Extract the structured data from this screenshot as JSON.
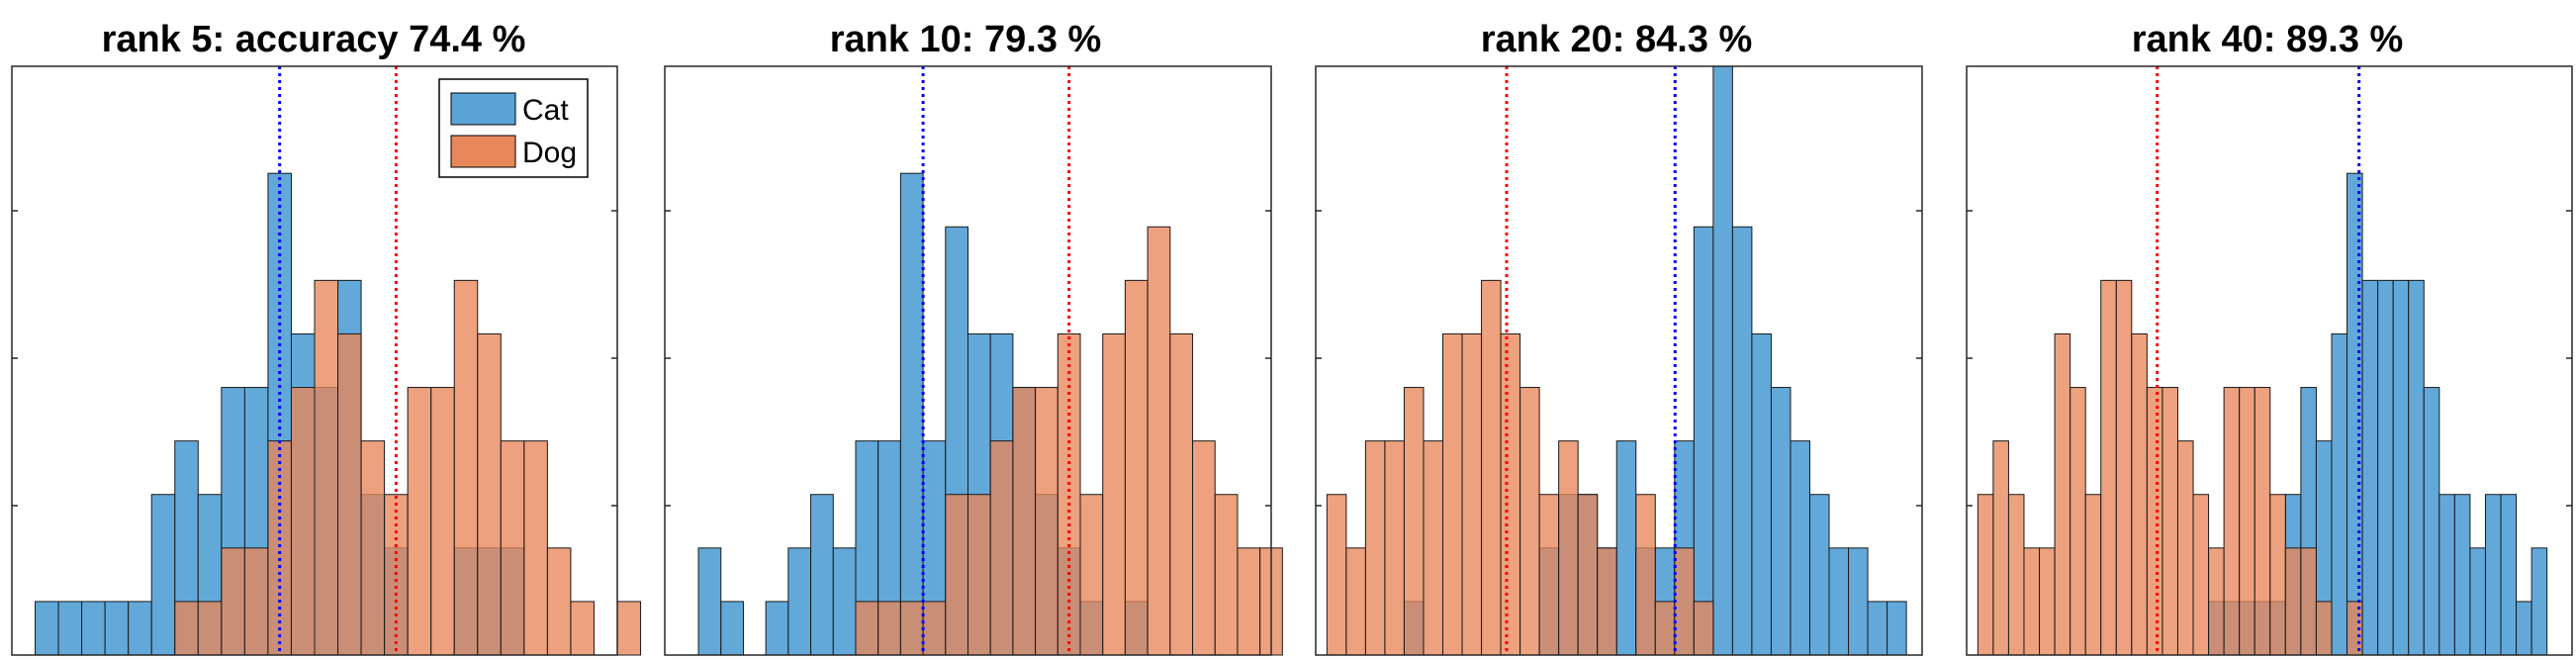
{
  "chart_data": [
    {
      "type": "histogram",
      "title": "rank 5: accuracy 74.4 %",
      "xlim": [
        0,
        26
      ],
      "ylim": [
        0,
        11
      ],
      "grid": false,
      "legend": {
        "placement": "top-right",
        "entries": [
          "Cat",
          "Dog"
        ]
      },
      "series": [
        {
          "name": "Cat",
          "color": "#5aa4d8",
          "values": [
            1,
            1,
            1,
            1,
            1,
            3,
            4,
            3,
            5,
            5,
            9,
            6,
            5,
            7,
            3,
            2,
            0,
            0,
            2,
            2,
            2,
            0,
            0,
            0,
            0,
            0
          ]
        },
        {
          "name": "Dog",
          "color": "#e8875a",
          "values": [
            0,
            0,
            0,
            0,
            0,
            0,
            1,
            1,
            2,
            2,
            4,
            5,
            7,
            6,
            4,
            3,
            5,
            5,
            7,
            6,
            4,
            4,
            2,
            1,
            0,
            1
          ]
        }
      ],
      "reference_lines": [
        {
          "x": 11.5,
          "color": "#0000ff"
        },
        {
          "x": 16.5,
          "color": "#ff0000"
        }
      ]
    },
    {
      "type": "histogram",
      "title": "rank 10: 79.3 %",
      "xlim": [
        0,
        27
      ],
      "ylim": [
        0,
        11
      ],
      "grid": false,
      "series": [
        {
          "name": "Cat",
          "color": "#5aa4d8",
          "values": [
            0,
            2,
            1,
            0,
            1,
            2,
            3,
            2,
            4,
            4,
            9,
            4,
            8,
            6,
            6,
            5,
            3,
            2,
            1,
            0,
            1,
            0,
            0,
            0,
            0,
            0,
            0
          ]
        },
        {
          "name": "Dog",
          "color": "#e8875a",
          "values": [
            0,
            0,
            0,
            0,
            0,
            0,
            0,
            0,
            1,
            1,
            1,
            1,
            3,
            3,
            4,
            5,
            5,
            6,
            3,
            6,
            7,
            8,
            6,
            4,
            3,
            2,
            2
          ]
        }
      ],
      "reference_lines": [
        {
          "x": 11.5,
          "color": "#0000ff"
        },
        {
          "x": 18,
          "color": "#ff0000"
        }
      ]
    },
    {
      "type": "histogram",
      "title": "rank 20: 84.3 %",
      "xlim": [
        0,
        27
      ],
      "ylim": [
        0,
        11
      ],
      "grid": false,
      "series": [
        {
          "name": "Cat",
          "color": "#5aa4d8",
          "values": [
            0,
            0,
            0,
            0,
            1,
            0,
            0,
            0,
            0,
            0,
            0,
            2,
            3,
            3,
            2,
            4,
            2,
            2,
            4,
            8,
            11,
            8,
            6,
            5,
            4,
            3,
            2,
            2,
            1,
            1,
            0
          ]
        },
        {
          "name": "Dog",
          "color": "#e8875a",
          "values": [
            3,
            2,
            4,
            4,
            5,
            4,
            6,
            6,
            7,
            6,
            5,
            3,
            4,
            3,
            2,
            0,
            3,
            1,
            2,
            1,
            0,
            0,
            0,
            0,
            0,
            0,
            0,
            0,
            0,
            0,
            0
          ]
        }
      ],
      "reference_lines": [
        {
          "x": 8.5,
          "color": "#ff0000"
        },
        {
          "x": 16,
          "color": "#0000ff"
        }
      ]
    },
    {
      "type": "histogram",
      "title": "rank 40: 89.3 %",
      "xlim": [
        0,
        27
      ],
      "ylim": [
        0,
        11
      ],
      "grid": false,
      "series": [
        {
          "name": "Cat",
          "color": "#5aa4d8",
          "values": [
            0,
            0,
            0,
            0,
            0,
            0,
            0,
            0,
            0,
            0,
            0,
            0,
            0,
            0,
            0,
            1,
            1,
            1,
            1,
            1,
            3,
            5,
            4,
            6,
            9,
            7,
            7,
            7,
            7,
            5,
            3,
            3,
            2,
            3,
            3,
            1,
            2
          ]
        },
        {
          "name": "Dog",
          "color": "#e8875a",
          "values": [
            3,
            4,
            3,
            2,
            2,
            6,
            5,
            3,
            7,
            7,
            6,
            5,
            5,
            4,
            3,
            2,
            5,
            5,
            5,
            3,
            2,
            2,
            1,
            0,
            1,
            0,
            0,
            0,
            0,
            0,
            0,
            0,
            0,
            0,
            0,
            0,
            0
          ]
        }
      ],
      "reference_lines": [
        {
          "x": 8.5,
          "color": "#ff0000"
        },
        {
          "x": 17.5,
          "color": "#0000ff"
        }
      ]
    }
  ]
}
